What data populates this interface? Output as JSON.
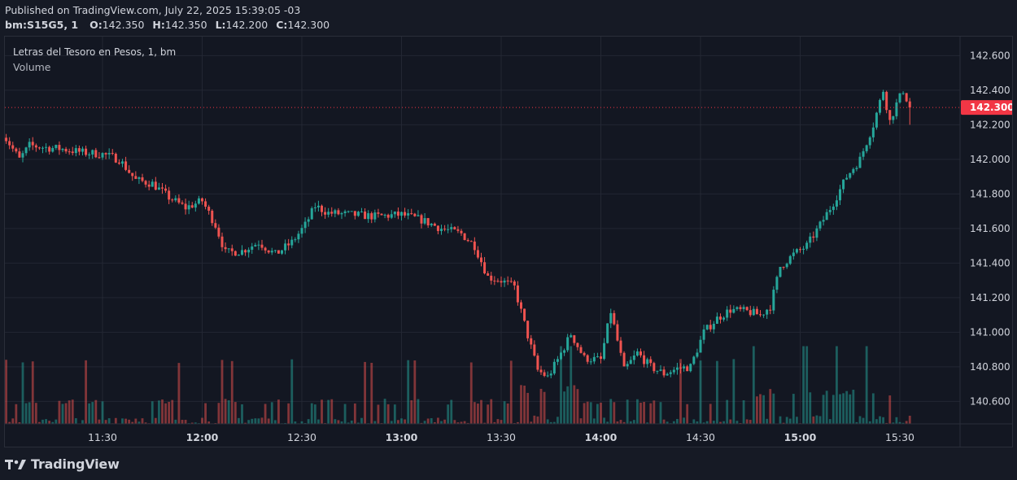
{
  "header": {
    "published": "Published on TradingView.com, July 22, 2025 15:39:05 -03",
    "symbol": "bm:S15G5, 1",
    "open_label": "O:",
    "open": "142.350",
    "high_label": "H:",
    "high": "142.350",
    "low_label": "L:",
    "low": "142.200",
    "close_label": "C:",
    "close": "142.300"
  },
  "legend": {
    "title": "Letras del Tesoro en Pesos, 1, bm",
    "volume_label": "Volume"
  },
  "footer": {
    "brand": "TradingView",
    "logo_icon": "tradingview-logo-icon"
  },
  "colors": {
    "up": "#26a69a",
    "down": "#ef5350",
    "grid": "#232733",
    "text": "#d1d4dc",
    "price_tag": "#f23645"
  },
  "chart_data": {
    "type": "candlestick",
    "interval_minutes": 1,
    "y_axis": {
      "ticks": [
        "142.600",
        "142.400",
        "142.200",
        "142.000",
        "141.800",
        "141.600",
        "141.400",
        "141.200",
        "141.000",
        "140.800",
        "140.600"
      ],
      "ylim": [
        140.47,
        142.71
      ]
    },
    "x_axis": {
      "ticks": [
        "11:30",
        "12:00",
        "12:30",
        "13:00",
        "13:30",
        "14:00",
        "14:30",
        "15:00",
        "15:30"
      ]
    },
    "last_price": "142.300",
    "price_path": [
      [
        "11:00",
        142.15
      ],
      [
        "11:05",
        142.0
      ],
      [
        "11:08",
        142.08
      ],
      [
        "11:12",
        142.07
      ],
      [
        "11:18",
        142.06
      ],
      [
        "11:24",
        142.04
      ],
      [
        "11:30",
        142.03
      ],
      [
        "11:35",
        142.0
      ],
      [
        "11:40",
        141.88
      ],
      [
        "11:45",
        141.86
      ],
      [
        "11:50",
        141.78
      ],
      [
        "11:55",
        141.72
      ],
      [
        "12:00",
        141.76
      ],
      [
        "12:04",
        141.62
      ],
      [
        "12:07",
        141.46
      ],
      [
        "12:12",
        141.47
      ],
      [
        "12:17",
        141.52
      ],
      [
        "12:22",
        141.45
      ],
      [
        "12:27",
        141.52
      ],
      [
        "12:31",
        141.62
      ],
      [
        "12:34",
        141.73
      ],
      [
        "12:38",
        141.69
      ],
      [
        "12:45",
        141.68
      ],
      [
        "12:52",
        141.67
      ],
      [
        "13:00",
        141.68
      ],
      [
        "13:06",
        141.65
      ],
      [
        "13:12",
        141.6
      ],
      [
        "13:18",
        141.57
      ],
      [
        "13:22",
        141.5
      ],
      [
        "13:26",
        141.32
      ],
      [
        "13:30",
        141.3
      ],
      [
        "13:34",
        141.26
      ],
      [
        "13:38",
        140.98
      ],
      [
        "13:41",
        140.78
      ],
      [
        "13:44",
        140.74
      ],
      [
        "13:47",
        140.84
      ],
      [
        "13:51",
        140.99
      ],
      [
        "13:55",
        140.85
      ],
      [
        "14:00",
        140.84
      ],
      [
        "14:03",
        141.12
      ],
      [
        "14:07",
        140.78
      ],
      [
        "14:11",
        140.88
      ],
      [
        "14:15",
        140.8
      ],
      [
        "14:19",
        140.76
      ],
      [
        "14:23",
        140.79
      ],
      [
        "14:27",
        140.8
      ],
      [
        "14:31",
        141.0
      ],
      [
        "14:35",
        141.08
      ],
      [
        "14:39",
        141.13
      ],
      [
        "14:44",
        141.12
      ],
      [
        "14:48",
        141.1
      ],
      [
        "14:51",
        141.15
      ],
      [
        "14:54",
        141.38
      ],
      [
        "14:58",
        141.45
      ],
      [
        "15:02",
        141.5
      ],
      [
        "15:06",
        141.62
      ],
      [
        "15:10",
        141.75
      ],
      [
        "15:14",
        141.9
      ],
      [
        "15:18",
        142.0
      ],
      [
        "15:22",
        142.2
      ],
      [
        "15:25",
        142.4
      ],
      [
        "15:27",
        142.22
      ],
      [
        "15:29",
        142.32
      ],
      [
        "15:31",
        142.4
      ],
      [
        "15:33",
        142.3
      ]
    ],
    "volume_range": [
      0,
      100
    ]
  }
}
